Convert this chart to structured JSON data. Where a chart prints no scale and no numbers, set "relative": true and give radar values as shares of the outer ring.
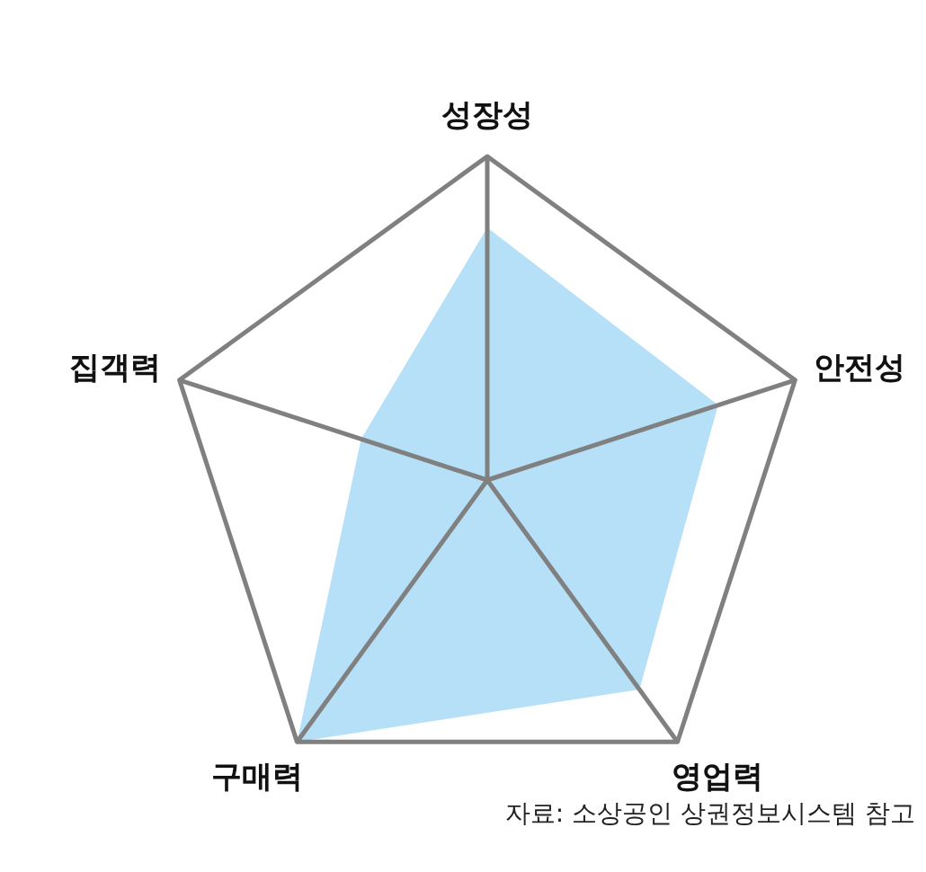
{
  "chart_data": {
    "type": "radar",
    "relative": true,
    "categories": [
      "성장성",
      "안전성",
      "영업력",
      "구매력",
      "집객력"
    ],
    "series": [
      {
        "color": "#b5e0f7",
        "values": [
          0.78,
          0.75,
          0.8,
          1.0,
          0.41
        ]
      }
    ],
    "annotations": [
      "자료: 소상공인 상권정보시스템 참고"
    ]
  }
}
